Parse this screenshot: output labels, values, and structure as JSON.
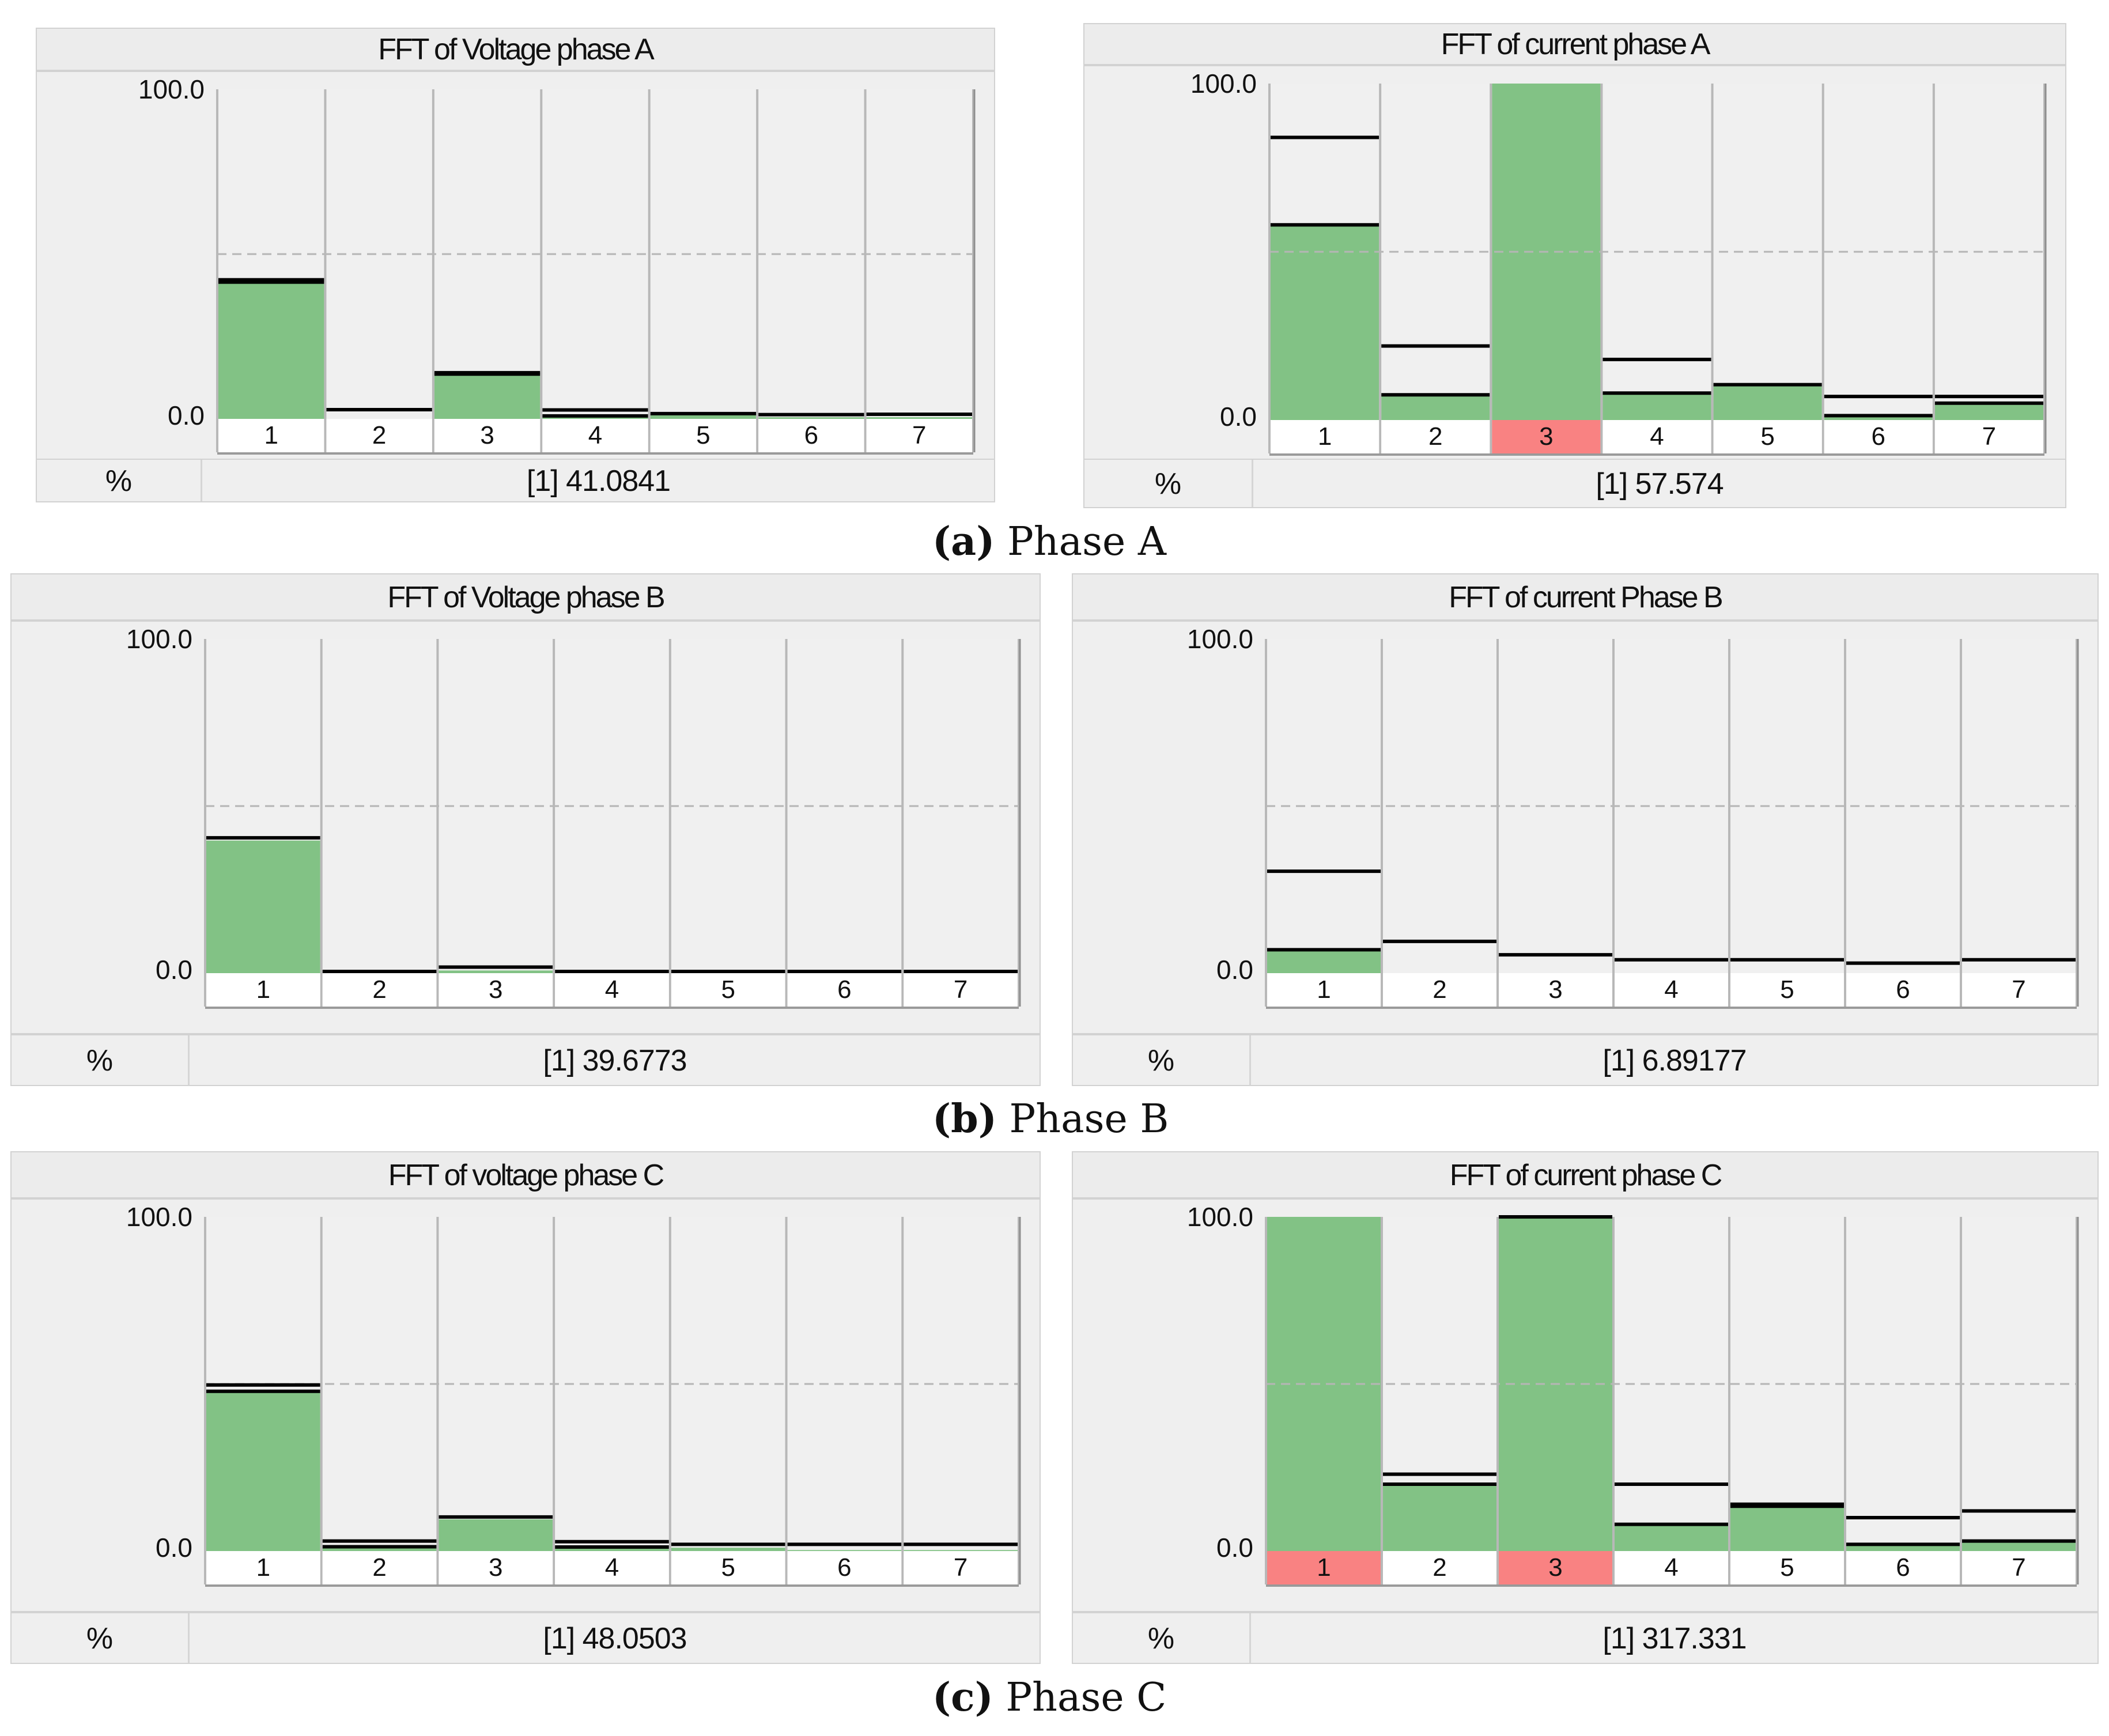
{
  "colors": {
    "bar": "#82c285",
    "alarm": "#f98282",
    "cell_bg": "#f0f0f0",
    "cell_border": "#b8b8b8",
    "line": "#000000",
    "dash": "#b5b5b5"
  },
  "captions": [
    {
      "letter": "(a)",
      "text": "Phase A"
    },
    {
      "letter": "(b)",
      "text": "Phase B"
    },
    {
      "letter": "(c)",
      "text": "Phase C"
    }
  ],
  "chart_data": [
    {
      "type": "bar",
      "title": "FFT of Voltage phase A",
      "unit": "%",
      "readout": "[1]  41.0841",
      "ylim": [
        0,
        100
      ],
      "ytick_labels": [
        "100.0",
        "0.0"
      ],
      "dashed_reference": 50,
      "categories": [
        "1",
        "2",
        "3",
        "4",
        "5",
        "6",
        "7"
      ],
      "values": [
        41.08,
        0,
        13.5,
        0.8,
        1.5,
        0.5,
        0.5
      ],
      "limit_lines": [
        [
          42.2,
          41.5
        ],
        [
          2.8
        ],
        [
          14.0,
          13.6
        ],
        [
          2.7,
          0.9
        ],
        [
          1.6
        ],
        [
          1.3
        ],
        [
          1.4
        ]
      ],
      "alarm_categories": []
    },
    {
      "type": "bar",
      "title": "FFT of current phase A",
      "unit": "%",
      "readout": "[1]  57.574",
      "ylim": [
        0,
        100
      ],
      "ytick_labels": [
        "100.0",
        "0.0"
      ],
      "dashed_reference": 50,
      "categories": [
        "1",
        "2",
        "3",
        "4",
        "5",
        "6",
        "7"
      ],
      "values": [
        57.57,
        7,
        100,
        8,
        10,
        1,
        4.5
      ],
      "limit_lines": [
        [
          84,
          58
        ],
        [
          22,
          7.5
        ],
        [],
        [
          18,
          8
        ],
        [
          10.5
        ],
        [
          7,
          1.3
        ],
        [
          7,
          5
        ]
      ],
      "alarm_categories": [
        "3"
      ]
    },
    {
      "type": "bar",
      "title": "FFT of Voltage phase B",
      "unit": "%",
      "readout": "[1]  39.6773",
      "ylim": [
        0,
        100
      ],
      "ytick_labels": [
        "100.0",
        "0.0"
      ],
      "dashed_reference": 50,
      "categories": [
        "1",
        "2",
        "3",
        "4",
        "5",
        "6",
        "7"
      ],
      "values": [
        39.68,
        0,
        0.8,
        0,
        0,
        0,
        0
      ],
      "limit_lines": [
        [
          40.5
        ],
        [
          0.5
        ],
        [
          1.8
        ],
        [
          0.5
        ],
        [
          0.5
        ],
        [
          0.5
        ],
        [
          0.5
        ]
      ],
      "alarm_categories": []
    },
    {
      "type": "bar",
      "title": "FFT of current Phase B",
      "unit": "%",
      "readout": "[1]  6.89177",
      "ylim": [
        0,
        100
      ],
      "ytick_labels": [
        "100.0",
        "0.0"
      ],
      "dashed_reference": 50,
      "categories": [
        "1",
        "2",
        "3",
        "4",
        "5",
        "6",
        "7"
      ],
      "values": [
        6.89,
        0,
        0,
        0,
        0,
        0,
        0
      ],
      "limit_lines": [
        [
          30.5,
          7
        ],
        [
          9.5
        ],
        [
          5.5
        ],
        [
          4
        ],
        [
          4
        ],
        [
          3
        ],
        [
          4
        ]
      ],
      "alarm_categories": []
    },
    {
      "type": "bar",
      "title": "FFT of voltage phase C",
      "unit": "%",
      "readout": "[1]  48.0503",
      "ylim": [
        0,
        100
      ],
      "ytick_labels": [
        "100.0",
        "0.0"
      ],
      "dashed_reference": 50,
      "categories": [
        "1",
        "2",
        "3",
        "4",
        "5",
        "6",
        "7"
      ],
      "values": [
        48.05,
        1,
        9.5,
        1,
        1,
        0.3,
        0.3
      ],
      "limit_lines": [
        [
          49.7,
          47.8
        ],
        [
          3.0,
          1.3
        ],
        [
          10.2
        ],
        [
          2.8,
          1.2
        ],
        [
          2.0
        ],
        [
          2.0
        ],
        [
          2.0
        ]
      ],
      "alarm_categories": []
    },
    {
      "type": "bar",
      "title": "FFT of current phase C",
      "unit": "%",
      "readout": "[1]  317.331",
      "ylim": [
        0,
        100
      ],
      "ytick_labels": [
        "100.0",
        "0.0"
      ],
      "dashed_reference": 50,
      "categories": [
        "1",
        "2",
        "3",
        "4",
        "5",
        "6",
        "7"
      ],
      "values": [
        100,
        20,
        100,
        8,
        13,
        2,
        3
      ],
      "limit_lines": [
        [],
        [
          23,
          20
        ],
        [
          100
        ],
        [
          20,
          8
        ],
        [
          14,
          13.4
        ],
        [
          10,
          2
        ],
        [
          12,
          3
        ]
      ],
      "alarm_categories": [
        "1",
        "3"
      ]
    }
  ]
}
